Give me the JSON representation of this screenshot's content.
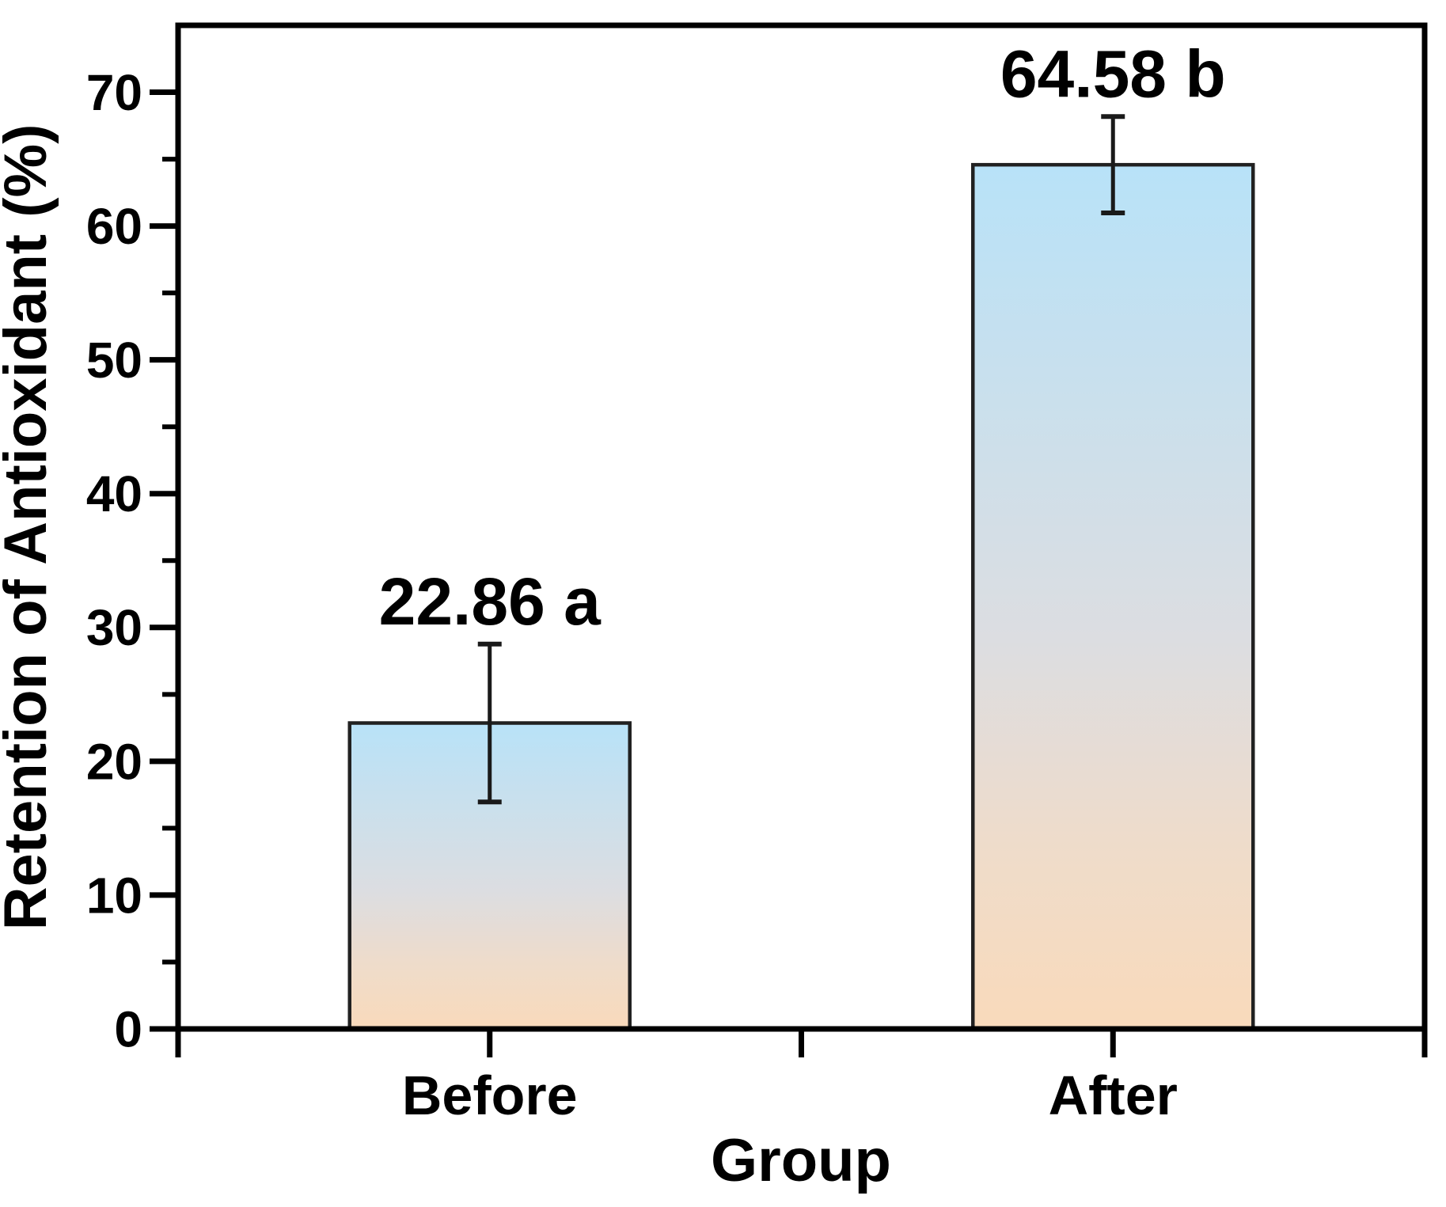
{
  "chart_data": {
    "type": "bar",
    "xlabel": "Group",
    "ylabel": "Retention of Antioxidant (%)",
    "categories": [
      "Before",
      "After"
    ],
    "values": [
      22.86,
      64.58
    ],
    "errors": [
      5.9,
      3.6
    ],
    "point_labels": [
      "22.86 a",
      "64.58 b"
    ],
    "ylim": [
      0,
      75
    ],
    "yticks": [
      0,
      10,
      20,
      30,
      40,
      50,
      60,
      70
    ],
    "ytick_minor_interval": 5,
    "grid": false,
    "legend": "none",
    "colors": {
      "background": "#ffffff",
      "axis": "#000000",
      "text": "#000000",
      "bar_border": "#212121",
      "error_bar": "#1a1a1a",
      "bar_gradient": [
        {
          "offset": 0.0,
          "color": "#b8e2f8"
        },
        {
          "offset": 0.35,
          "color": "#cfdfe9"
        },
        {
          "offset": 0.55,
          "color": "#dcdde1"
        },
        {
          "offset": 0.78,
          "color": "#eedccb"
        },
        {
          "offset": 1.0,
          "color": "#f9dabb"
        }
      ]
    }
  }
}
